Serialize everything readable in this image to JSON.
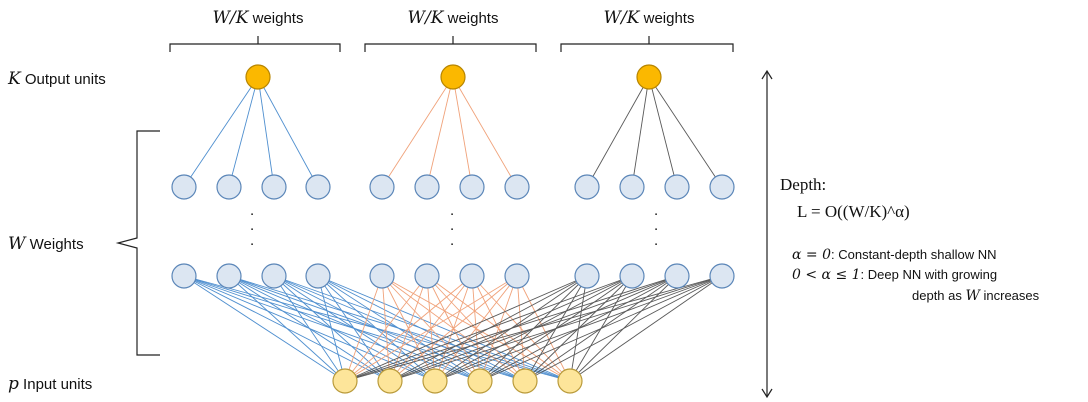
{
  "colors": {
    "output_fill": "#fbb800",
    "output_stroke": "#b78500",
    "hidden_fill": "#dce6f2",
    "hidden_stroke": "#5b86b8",
    "input_fill": "#fde59a",
    "input_stroke": "#b99a3a",
    "edge_group1": "#4f8fcf",
    "edge_group2": "#f0a27a",
    "edge_group3": "#595959"
  },
  "groups": [
    {
      "label_var": "W/K",
      "label_text": " weights"
    },
    {
      "label_var": "W/K",
      "label_text": " weights"
    },
    {
      "label_var": "W/K",
      "label_text": " weights"
    }
  ],
  "left": {
    "output_var": "K",
    "output_text": " Output units",
    "weights_var": "W",
    "weights_text": " Weights",
    "input_var": "p",
    "input_text": " Input units"
  },
  "ellipsis": ".",
  "right": {
    "depth_title": "Depth:",
    "depth_formula": "L = O((W/K)^α)",
    "note1_var": "α = 0",
    "note1_text": ": Constant-depth shallow NN",
    "note2_var": "0 < α ≤ 1",
    "note2_text": ": Deep NN with growing",
    "note3_text_a": "depth as ",
    "note3_var": "W",
    "note3_text_b": " increases"
  }
}
